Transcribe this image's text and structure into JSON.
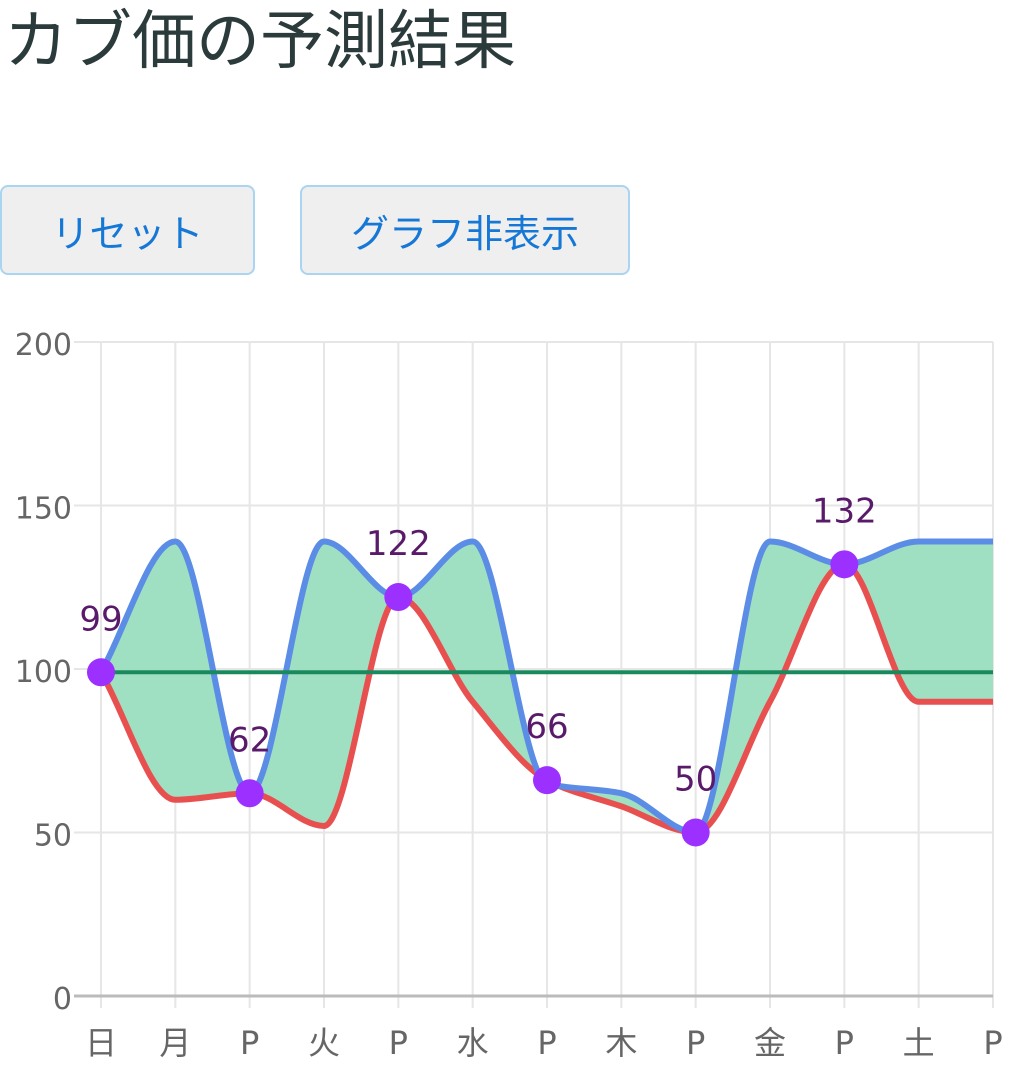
{
  "page": {
    "title": "カブ価の予測結果"
  },
  "toolbar": {
    "reset_label": "リセット",
    "toggle_graph_label": "グラフ非表示"
  },
  "colors": {
    "upper": "#5b8de6",
    "lower": "#e85050",
    "band": "#a0e0c2",
    "buy_line": "#1a8a5e",
    "points": "#9b30ff",
    "point_labels": "#5a1a6a",
    "grid": "#e6e6e6",
    "axis": "#bbbbbb",
    "tick_text": "#666666"
  },
  "chart_data": {
    "type": "area",
    "categories": [
      "日",
      "月",
      "P",
      "火",
      "P",
      "水",
      "P",
      "木",
      "P",
      "金",
      "P",
      "土",
      "P"
    ],
    "ylim": [
      0,
      200
    ],
    "yticks": [
      0,
      50,
      100,
      150,
      200
    ],
    "grid": true,
    "series": [
      {
        "values": [
          99,
          139,
          62,
          139,
          122,
          139,
          65,
          62,
          50,
          139,
          132,
          139,
          139
        ]
      },
      {
        "values": [
          99,
          60,
          62,
          52,
          122,
          90,
          66,
          58,
          50,
          90,
          132,
          90,
          90
        ]
      },
      {
        "values": [
          99,
          99,
          99,
          99,
          99,
          99,
          99,
          99,
          99,
          99,
          99,
          99,
          99
        ]
      }
    ],
    "points": [
      {
        "index": 0,
        "value": 99,
        "label": "99"
      },
      {
        "index": 2,
        "value": 62,
        "label": "62"
      },
      {
        "index": 4,
        "value": 122,
        "label": "122"
      },
      {
        "index": 6,
        "value": 66,
        "label": "66"
      },
      {
        "index": 8,
        "value": 50,
        "label": "50"
      },
      {
        "index": 10,
        "value": 132,
        "label": "132"
      }
    ]
  }
}
